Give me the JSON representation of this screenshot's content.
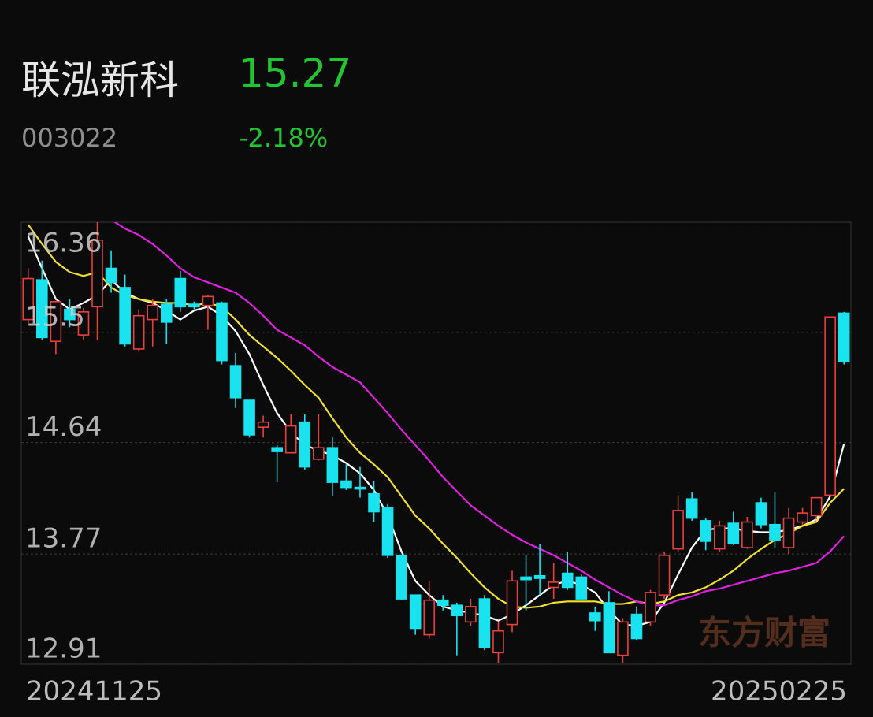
{
  "header": {
    "name": "联泓新科",
    "price": "15.27",
    "code": "003022",
    "change": "-2.18%"
  },
  "chart_data": {
    "type": "candlestick",
    "categories": [
      "20241125",
      null,
      null,
      null,
      null,
      null,
      null,
      null,
      null,
      null,
      null,
      null,
      null,
      null,
      null,
      null,
      null,
      null,
      null,
      null,
      null,
      null,
      null,
      null,
      null,
      null,
      null,
      null,
      null,
      null,
      null,
      null,
      null,
      null,
      null,
      null,
      null,
      null,
      null,
      null,
      null,
      null,
      null,
      null,
      null,
      null,
      null,
      null,
      null,
      null,
      null,
      null,
      null,
      null,
      null,
      null,
      null,
      null,
      null,
      "20250225"
    ],
    "open": [
      15.6,
      15.91,
      15.43,
      15.68,
      15.48,
      15.7,
      16.0,
      15.85,
      15.37,
      15.6,
      15.72,
      15.92,
      15.72,
      15.71,
      15.73,
      15.24,
      14.97,
      14.76,
      14.6,
      14.56,
      14.8,
      14.51,
      14.6,
      14.34,
      14.29,
      14.24,
      14.13,
      13.76,
      13.45,
      13.14,
      13.41,
      13.37,
      13.24,
      13.42,
      13.0,
      13.22,
      13.59,
      13.6,
      13.51,
      13.62,
      13.59,
      13.31,
      13.39,
      12.98,
      13.3,
      13.24,
      13.45,
      13.81,
      14.2,
      14.03,
      13.81,
      14.01,
      13.82,
      14.17,
      14.0,
      13.82,
      14.02,
      14.07,
      14.23,
      15.65
    ],
    "high": [
      16.0,
      16.06,
      15.74,
      15.76,
      15.69,
      16.36,
      16.14,
      15.95,
      15.68,
      15.76,
      15.76,
      15.98,
      15.74,
      15.79,
      15.74,
      15.34,
      14.97,
      14.85,
      14.62,
      14.86,
      14.86,
      14.86,
      14.68,
      14.47,
      14.45,
      14.34,
      14.16,
      13.76,
      13.45,
      13.56,
      13.45,
      13.39,
      13.42,
      13.45,
      13.24,
      13.64,
      13.76,
      13.85,
      13.7,
      13.79,
      13.61,
      13.36,
      13.48,
      13.27,
      13.36,
      13.49,
      13.79,
      14.23,
      14.25,
      14.05,
      14.03,
      14.1,
      14.06,
      14.21,
      14.25,
      14.13,
      14.13,
      14.21,
      15.62,
      15.66
    ],
    "low": [
      15.57,
      15.44,
      15.33,
      15.54,
      15.44,
      15.44,
      15.81,
      15.39,
      15.35,
      15.39,
      15.41,
      15.66,
      15.68,
      15.52,
      15.25,
      14.91,
      14.68,
      14.68,
      14.33,
      14.56,
      14.43,
      14.5,
      14.22,
      14.27,
      14.21,
      14.02,
      13.74,
      13.41,
      13.14,
      13.11,
      13.33,
      12.98,
      13.21,
      13.02,
      12.92,
      13.16,
      13.33,
      13.45,
      13.42,
      13.49,
      13.41,
      13.17,
      13.0,
      12.92,
      13.1,
      13.21,
      13.42,
      13.79,
      14.03,
      13.8,
      13.79,
      13.84,
      13.81,
      13.97,
      13.82,
      13.77,
      14.0,
      14.04,
      14.21,
      15.25
    ],
    "close": [
      15.92,
      15.46,
      15.74,
      15.6,
      15.66,
      16.22,
      15.89,
      15.41,
      15.63,
      15.71,
      15.58,
      15.7,
      15.7,
      15.78,
      15.28,
      14.99,
      14.7,
      14.8,
      14.57,
      14.77,
      14.45,
      14.6,
      14.33,
      14.29,
      14.28,
      14.1,
      13.76,
      13.42,
      13.19,
      13.41,
      13.37,
      13.29,
      13.36,
      13.04,
      13.17,
      13.56,
      13.57,
      13.58,
      13.55,
      13.51,
      13.42,
      13.25,
      13.0,
      13.24,
      13.11,
      13.47,
      13.76,
      14.11,
      14.05,
      13.87,
      13.99,
      13.85,
      14.02,
      14.0,
      13.88,
      14.05,
      14.09,
      14.21,
      15.62,
      15.27
    ],
    "up_color": "#e8403c",
    "down_color": "#19e3ee",
    "lines": [
      {
        "color": "#ffffff",
        "values": [
          16.25,
          16.0,
          15.76,
          15.68,
          15.73,
          15.79,
          15.91,
          15.81,
          15.76,
          15.73,
          15.67,
          15.6,
          15.67,
          15.7,
          15.63,
          15.51,
          15.33,
          15.09,
          14.87,
          14.72,
          14.62,
          14.58,
          14.54,
          14.48,
          14.4,
          14.27,
          14.07,
          13.79,
          13.56,
          13.45,
          13.36,
          13.33,
          13.31,
          13.29,
          13.25,
          13.3,
          13.37,
          13.45,
          13.53,
          13.56,
          13.53,
          13.47,
          13.33,
          13.22,
          13.21,
          13.24,
          13.39,
          13.61,
          13.82,
          13.96,
          13.97,
          13.97,
          13.95,
          13.94,
          13.94,
          13.96,
          13.99,
          14.04,
          14.22,
          14.63
        ]
      },
      {
        "color": "#f2e02a",
        "values": [
          16.34,
          16.19,
          16.05,
          15.97,
          15.94,
          15.97,
          15.85,
          15.79,
          15.76,
          15.74,
          15.73,
          15.73,
          15.71,
          15.73,
          15.7,
          15.6,
          15.48,
          15.39,
          15.3,
          15.2,
          15.09,
          14.99,
          14.83,
          14.68,
          14.56,
          14.47,
          14.37,
          14.22,
          14.07,
          13.97,
          13.85,
          13.74,
          13.62,
          13.51,
          13.42,
          13.36,
          13.35,
          13.36,
          13.39,
          13.4,
          13.4,
          13.4,
          13.38,
          13.38,
          13.4,
          13.38,
          13.4,
          13.45,
          13.47,
          13.51,
          13.57,
          13.64,
          13.73,
          13.81,
          13.88,
          13.93,
          13.99,
          14.02,
          14.17,
          14.28
        ]
      },
      {
        "color": "#e020e0",
        "values": [
          null,
          null,
          null,
          null,
          null,
          null,
          16.38,
          16.31,
          16.26,
          16.19,
          16.1,
          16.0,
          15.93,
          15.89,
          15.85,
          15.81,
          15.73,
          15.63,
          15.52,
          15.46,
          15.4,
          15.31,
          15.23,
          15.17,
          15.11,
          14.99,
          14.87,
          14.74,
          14.62,
          14.5,
          14.37,
          14.26,
          14.15,
          14.07,
          13.99,
          13.92,
          13.86,
          13.81,
          13.76,
          13.7,
          13.64,
          13.57,
          13.51,
          13.45,
          13.4,
          13.37,
          13.37,
          13.41,
          13.44,
          13.48,
          13.5,
          13.53,
          13.56,
          13.59,
          13.62,
          13.64,
          13.67,
          13.7,
          13.79,
          13.91
        ]
      }
    ],
    "ylim": [
      12.91,
      16.36
    ],
    "yticks": [
      12.91,
      13.77,
      14.64,
      15.5,
      16.36
    ],
    "grid": true,
    "watermark": "东方财富"
  }
}
